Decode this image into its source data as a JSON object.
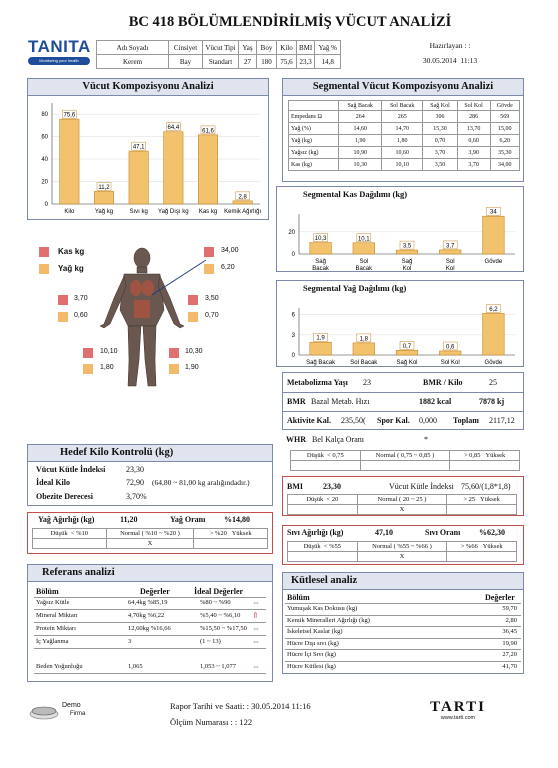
{
  "title": "BC 418 BÖLÜMLENDİRİLMİŞ VÜCUT ANALİZİ",
  "logo": {
    "brand": "TANITA",
    "tagline": "Monitoring your health"
  },
  "info_table": {
    "headers": [
      "Adı Soyadı",
      "Cinsiyet",
      "Vücut Tipi",
      "Yaş",
      "Boy",
      "Kilo",
      "BMI",
      "Yağ %"
    ],
    "values": [
      "Kerem",
      "Bay",
      "Standart",
      "27",
      "180",
      "75,6",
      "23,3",
      "14,8"
    ]
  },
  "prepared": {
    "label": "Hazırlayan : :",
    "date": "30.05.2014",
    "time": "11:13"
  },
  "body_comp": {
    "title": "Vücut Kompozisyonu Analizi",
    "chart_data": {
      "type": "bar",
      "categories": [
        "Kilo",
        "Yağ kg",
        "Sıvı kg",
        "Yağ Dışı kg",
        "Kas kg",
        "Kemik Ağırlığı"
      ],
      "values": [
        75.6,
        11.2,
        47.1,
        64.4,
        61.6,
        2.8
      ],
      "value_labels": [
        "75,6",
        "11,2",
        "47,1",
        "64,4",
        "61,6",
        "2,8"
      ],
      "yticks": [
        "0",
        "20",
        "40",
        "60",
        "80"
      ],
      "ylim": [
        0,
        90
      ]
    }
  },
  "silhouette": {
    "legend": [
      {
        "label": "Kas kg",
        "color": "#e07070"
      },
      {
        "label": "Yağ kg",
        "color": "#f4b96a"
      }
    ],
    "trunk": {
      "kas": "34,00",
      "yag": "6,20"
    },
    "left_arm": {
      "kas": "3,70",
      "yag": "0,60"
    },
    "right_arm": {
      "kas": "3,50",
      "yag": "0,70"
    },
    "left_leg": {
      "kas": "10,10",
      "yag": "1,80"
    },
    "right_leg": {
      "kas": "10,30",
      "yag": "1,90"
    }
  },
  "segmental": {
    "title": "Segmental Vücut Kompozisyonu Analizi",
    "columns": [
      "",
      "Sağ Bacak",
      "Sol Bacak",
      "Sağ Kol",
      "Sol Kol",
      "Gövde"
    ],
    "rows": [
      [
        "Empedans Ω",
        "264",
        "265",
        "306",
        "286",
        "569"
      ],
      [
        "Yağ (%)",
        "14,60",
        "14,70",
        "15,30",
        "13,70",
        "15,00"
      ],
      [
        "Yağ (kg)",
        "1,90",
        "1,80",
        "0,70",
        "0,60",
        "6,20"
      ],
      [
        "Yağsız (kg)",
        "10,90",
        "10,60",
        "3,70",
        "3,90",
        "35,30"
      ],
      [
        "Kas (kg)",
        "10,30",
        "10,10",
        "3,50",
        "3,70",
        "34,00"
      ]
    ]
  },
  "seg_muscle": {
    "title": "Segmental Kas Dağılımı (kg)",
    "chart_data": {
      "type": "bar",
      "categories": [
        "Sağ Bacak",
        "Sol Bacak",
        "Sağ Kol",
        "Sol Kol",
        "Gövde"
      ],
      "values": [
        10.3,
        10.1,
        3.5,
        3.7,
        34
      ],
      "value_labels": [
        "10,3",
        "10,1",
        "3,5",
        "3,7",
        "34"
      ],
      "yticks": [
        "0",
        "20"
      ],
      "ylim": [
        0,
        36
      ]
    }
  },
  "seg_fat": {
    "title": "Segmental Yağ Dağılımı (kg)",
    "chart_data": {
      "type": "bar",
      "categories": [
        "Sağ Bacak",
        "Sol Bacak",
        "Sağ Kol",
        "Sol Kol",
        "Gövde"
      ],
      "values": [
        1.9,
        1.8,
        0.7,
        0.6,
        6.2
      ],
      "value_labels": [
        "1,9",
        "1,8",
        "0,7",
        "0,6",
        "6,2"
      ],
      "yticks": [
        "0",
        "3",
        "6"
      ],
      "ylim": [
        0,
        7
      ]
    }
  },
  "metabolism": {
    "age_label": "Metabolizma Yaşı",
    "age": "23",
    "bmr_kilo_label": "BMR / Kilo",
    "bmr_kilo": "25",
    "bmr_label": "BMR",
    "bmr_desc": "Bazal Metab. Hızı",
    "bmr_kcal": "1882 kcal",
    "bmr_kj": "7878 kj",
    "active_label": "Aktivite Kal.",
    "active": "235,50(",
    "sport_label": "Spor Kal.",
    "sport": "0,000",
    "total_label": "Toplam",
    "total": "2117,12"
  },
  "whr": {
    "label": "WHR",
    "desc": "Bel Kalça Oranı",
    "value": "*",
    "scale": [
      "Düşük",
      "< 0,75",
      "Normal ( 0,75 ~ 0,85 )",
      "> 0,85",
      "Yüksek"
    ]
  },
  "bmi": {
    "label": "BMI",
    "value": "23,30",
    "desc": "Vücut Kütle İndeksi",
    "formula": "75,60/(1,8*1,8)",
    "scale": [
      "Düşük",
      "< 20",
      "Normal ( 20 ~ 25 )",
      "> 25",
      "Yüksek"
    ],
    "mark": "X"
  },
  "target": {
    "title": "Hedef Kilo Kontrolü (kg)",
    "bmi_label": "Vücut Kütle İndeksi",
    "bmi": "23,30",
    "ideal_label": "İdeal Kilo",
    "ideal": "72,90",
    "ideal_range": "(64,80 ~ 81,00 kg aralığındadır.)",
    "obesity_label": "Obezite Derecesi",
    "obesity": "3,70%"
  },
  "fat": {
    "label": "Yağ Ağırlığı (kg)",
    "value": "11,20",
    "ratio_label": "Yağ Oranı",
    "ratio": "%14,80",
    "scale": [
      "Düşük",
      "< %10",
      "Normal ( %10 ~ %20 )",
      "> %20",
      "Yüksek"
    ],
    "mark": "X"
  },
  "water": {
    "label": "Sıvı Ağırlığı (kg)",
    "value": "47,10",
    "ratio_label": "Sıvı Oranı",
    "ratio": "%62,30",
    "scale": [
      "Düşük",
      "< %55",
      "Normal ( %55 ~ %66 )",
      "> %66",
      "Yüksek"
    ],
    "mark": "X"
  },
  "reference": {
    "title": "Referans analizi",
    "headers": [
      "Bölüm",
      "Değerler",
      "İdeal Değerler"
    ],
    "rows": [
      {
        "name": "Yağsız Kütle",
        "value": "64,4kg  %85,19",
        "ideal": "%80 ~ %90",
        "icon": "⇔"
      },
      {
        "name": "Mineral Miktarı",
        "value": "4,70kg  %6,22",
        "ideal": "%5,40 ~ %6,10",
        "icon": "⇑"
      },
      {
        "name": "Protein Miktarı",
        "value": "12,60kg  %16,66",
        "ideal": "%15,50 ~ %17,50",
        "icon": "⇔"
      },
      {
        "name": "İç Yağlanma",
        "value": "3",
        "ideal": "(1 ~ 13)",
        "icon": "⇔"
      },
      {
        "name": "Beden Yoğunluğu",
        "value": "1,065",
        "ideal": "1,053 ~ 1,077",
        "icon": "⇔"
      }
    ]
  },
  "mass": {
    "title": "Kütlesel analiz",
    "headers": [
      "Bölüm",
      "Değerler"
    ],
    "rows": [
      [
        "Yumuşak Kas Dokusu (kg)",
        "59,70"
      ],
      [
        "Kemik Mineralleri Ağırlığı (kg)",
        "2,80"
      ],
      [
        "İskeletsel Kaslar (kg)",
        "36,45"
      ],
      [
        "Hücre Dışı sıvı (kg)",
        "19,90"
      ],
      [
        "Hücre İçi Sıvı (kg)",
        "27,20"
      ],
      [
        "Hücre Kütlesi (kg)",
        "41,70"
      ]
    ]
  },
  "footer": {
    "demo": "Demo",
    "firma": "Firma",
    "report_label": "Rapor Tarihi ve Saati: : 30.05.2014  11:16",
    "measure_label": "Ölçüm Numarası : : 122",
    "tarti": "TARTI",
    "tarti_sub": "www.tarti.com"
  }
}
